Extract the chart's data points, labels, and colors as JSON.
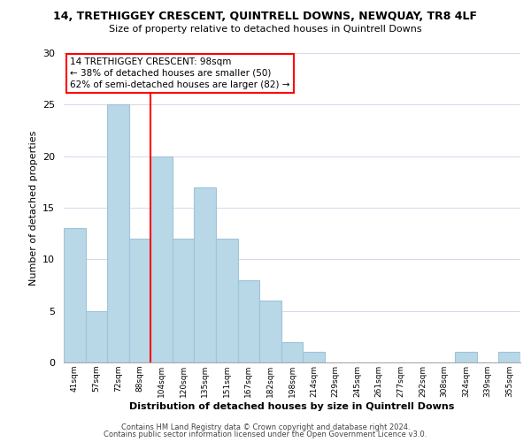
{
  "title_line1": "14, TRETHIGGEY CRESCENT, QUINTRELL DOWNS, NEWQUAY, TR8 4LF",
  "title_line2": "Size of property relative to detached houses in Quintrell Downs",
  "xlabel": "Distribution of detached houses by size in Quintrell Downs",
  "ylabel": "Number of detached properties",
  "bin_labels": [
    "41sqm",
    "57sqm",
    "72sqm",
    "88sqm",
    "104sqm",
    "120sqm",
    "135sqm",
    "151sqm",
    "167sqm",
    "182sqm",
    "198sqm",
    "214sqm",
    "229sqm",
    "245sqm",
    "261sqm",
    "277sqm",
    "292sqm",
    "308sqm",
    "324sqm",
    "339sqm",
    "355sqm"
  ],
  "bar_heights": [
    13,
    5,
    25,
    12,
    20,
    12,
    17,
    12,
    8,
    6,
    2,
    1,
    0,
    0,
    0,
    0,
    0,
    0,
    1,
    0,
    1
  ],
  "bar_color": "#b8d8e8",
  "bar_edge_color": "#a0c4d8",
  "vline_x": 4.0,
  "vline_color": "red",
  "annotation_text": "14 TRETHIGGEY CRESCENT: 98sqm\n← 38% of detached houses are smaller (50)\n62% of semi-detached houses are larger (82) →",
  "annotation_box_edgecolor": "red",
  "ylim": [
    0,
    30
  ],
  "yticks": [
    0,
    5,
    10,
    15,
    20,
    25,
    30
  ],
  "footer_line1": "Contains HM Land Registry data © Crown copyright and database right 2024.",
  "footer_line2": "Contains public sector information licensed under the Open Government Licence v3.0.",
  "background_color": "#ffffff",
  "grid_color": "#d8d8ec"
}
